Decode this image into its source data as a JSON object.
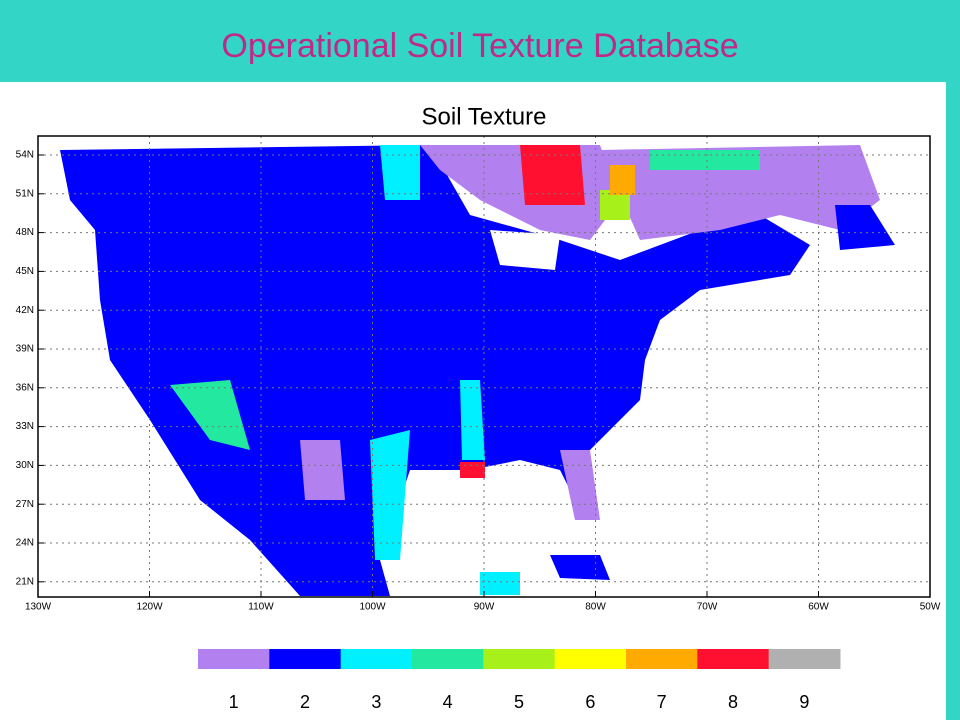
{
  "header": {
    "title": "Operational Soil Texture Database"
  },
  "map": {
    "title": "Soil Texture",
    "lat_labels": [
      "54N",
      "51N",
      "48N",
      "45N",
      "42N",
      "39N",
      "36N",
      "33N",
      "30N",
      "27N",
      "24N",
      "21N"
    ],
    "lon_labels": [
      "130W",
      "120W",
      "110W",
      "100W",
      "90W",
      "80W",
      "70W",
      "60W",
      "50W"
    ]
  },
  "legend": {
    "items": [
      {
        "label": "1",
        "color": "#b380f0"
      },
      {
        "label": "2",
        "color": "#0000ff"
      },
      {
        "label": "3",
        "color": "#00f0ff"
      },
      {
        "label": "4",
        "color": "#22e8a0"
      },
      {
        "label": "5",
        "color": "#a8f01a"
      },
      {
        "label": "6",
        "color": "#ffff00"
      },
      {
        "label": "7",
        "color": "#ffaa00"
      },
      {
        "label": "8",
        "color": "#ff1030"
      },
      {
        "label": "9",
        "color": "#b0b0b0"
      }
    ]
  }
}
